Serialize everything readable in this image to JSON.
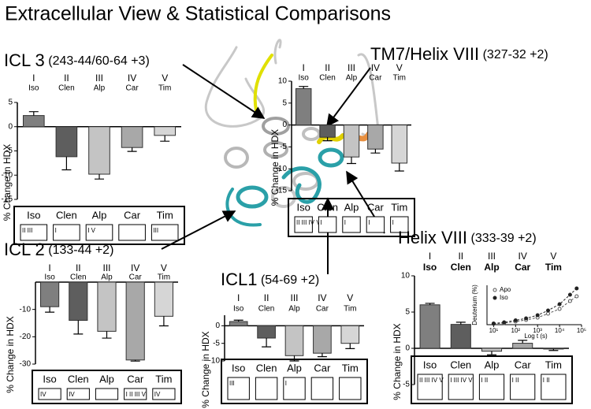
{
  "title": "Extracellular View & Statistical Comparisons",
  "chart_data": [
    {
      "type": "bar",
      "title": "ICL 3",
      "subtitle": "(243-44/60-64 +3)",
      "numerals": [
        "I",
        "II",
        "III",
        "IV",
        "V"
      ],
      "categories": [
        "Iso",
        "Clen",
        "Alp",
        "Car",
        "Tim"
      ],
      "values": [
        2.3,
        -6.2,
        -9.8,
        -4.3,
        -1.8
      ],
      "errors": [
        0.8,
        2.7,
        1.0,
        0.8,
        1.2
      ],
      "colors": [
        "#7f7f7f",
        "#5e5e5e",
        "#c4c4c4",
        "#a8a8a8",
        "#d6d6d6"
      ],
      "ylabel": "% Change in HDX",
      "ylim": [
        -15,
        5
      ],
      "yticks": [
        5,
        0,
        -5,
        -10,
        -15
      ],
      "comparisons": [
        "II III",
        "I",
        "I V",
        null,
        "III"
      ]
    },
    {
      "type": "bar",
      "title": "TM7/Helix VIII",
      "subtitle": "(327-32 +2)",
      "numerals": [
        "I",
        "II",
        "III",
        "IV",
        "V"
      ],
      "categories": [
        "Iso",
        "Clen",
        "Alp",
        "Car",
        "Tim"
      ],
      "values": [
        8.3,
        -2.8,
        -7.3,
        -5.5,
        -8.7
      ],
      "errors": [
        0.5,
        0.8,
        1.5,
        0.9,
        1.8
      ],
      "colors": [
        "#7f7f7f",
        "#5e5e5e",
        "#c4c4c4",
        "#a8a8a8",
        "#d6d6d6"
      ],
      "ylabel": "% Change in HDX",
      "ylim": [
        -15,
        10
      ],
      "yticks": [
        10,
        5,
        0,
        -5,
        -10,
        -15
      ],
      "comparisons": [
        "II III IV V",
        "I",
        "I",
        "I",
        "I"
      ]
    },
    {
      "type": "bar",
      "title": "ICL 2",
      "subtitle": "(133-44 +2)",
      "numerals": [
        "I",
        "II",
        "III",
        "IV",
        "V"
      ],
      "categories": [
        "Iso",
        "Clen",
        "Alp",
        "Car",
        "Tim"
      ],
      "values": [
        -9,
        -14,
        -18,
        -28.5,
        -12.5
      ],
      "errors": [
        2,
        5,
        2.5,
        0.4,
        3.5
      ],
      "colors": [
        "#7f7f7f",
        "#5e5e5e",
        "#c4c4c4",
        "#a8a8a8",
        "#d6d6d6"
      ],
      "ylabel": "% Change in HDX",
      "ylim": [
        -30,
        0
      ],
      "yticks": [
        -10,
        -20,
        -30
      ],
      "comparisons": [
        "IV",
        "IV",
        null,
        "I II III V",
        "IV"
      ]
    },
    {
      "type": "bar",
      "title": "ICL1",
      "subtitle": "(54-69 +2)",
      "numerals": [
        "I",
        "II",
        "III",
        "IV",
        "V"
      ],
      "categories": [
        "Iso",
        "Clen",
        "Alp",
        "Car",
        "Tim"
      ],
      "values": [
        1.2,
        -3.5,
        -8.5,
        -7.8,
        -5
      ],
      "errors": [
        0.4,
        2.5,
        1.5,
        1,
        1.5
      ],
      "colors": [
        "#7f7f7f",
        "#5e5e5e",
        "#c4c4c4",
        "#a8a8a8",
        "#d6d6d6"
      ],
      "ylabel": "% Change in HDX",
      "ylim": [
        -10,
        3
      ],
      "yticks": [
        0,
        -5,
        -10
      ],
      "comparisons": [
        "III",
        null,
        "I",
        null,
        null
      ]
    },
    {
      "type": "bar",
      "title": "Helix VIII",
      "subtitle": "(333-39 +2)",
      "numerals": [
        "I",
        "II",
        "III",
        "IV",
        "V"
      ],
      "categories": [
        "Iso",
        "Clen",
        "Alp",
        "Car",
        "Tim"
      ],
      "values": [
        6,
        3.3,
        -0.4,
        0.7,
        -0.1
      ],
      "errors": [
        0.2,
        0.3,
        0.5,
        0.4,
        0.2
      ],
      "colors": [
        "#7f7f7f",
        "#5e5e5e",
        "#c4c4c4",
        "#a8a8a8",
        "#d6d6d6"
      ],
      "ylabel": "% Change in HDX",
      "ylim": [
        -5,
        10
      ],
      "yticks": [
        10,
        5,
        0,
        -5
      ],
      "comparisons": [
        "II III IV V",
        "I III IV V",
        "I II",
        "I II",
        "I II"
      ]
    },
    {
      "type": "line",
      "ylabel": "Deuterium (%)",
      "xlabel": "Log t (s)",
      "xscale": "log",
      "x": [
        10,
        30,
        100,
        300,
        1000,
        3000,
        10000,
        30000,
        60000
      ],
      "xlim": [
        5,
        100000
      ],
      "xticks": [
        {
          "value": 10,
          "label": "10¹"
        },
        {
          "value": 100,
          "label": "10²"
        },
        {
          "value": 1000,
          "label": "10³"
        },
        {
          "value": 10000,
          "label": "10⁴"
        },
        {
          "value": 100000,
          "label": "10⁵"
        }
      ],
      "ylim": [
        0,
        100
      ],
      "series": [
        {
          "name": "Apo",
          "color": "#555555",
          "marker": "open",
          "values": [
            2,
            4,
            8,
            12,
            18,
            28,
            40,
            60,
            72
          ]
        },
        {
          "name": "Iso",
          "color": "#222222",
          "marker": "filled",
          "values": [
            3,
            6,
            11,
            16,
            24,
            36,
            52,
            76,
            92
          ]
        }
      ]
    }
  ]
}
